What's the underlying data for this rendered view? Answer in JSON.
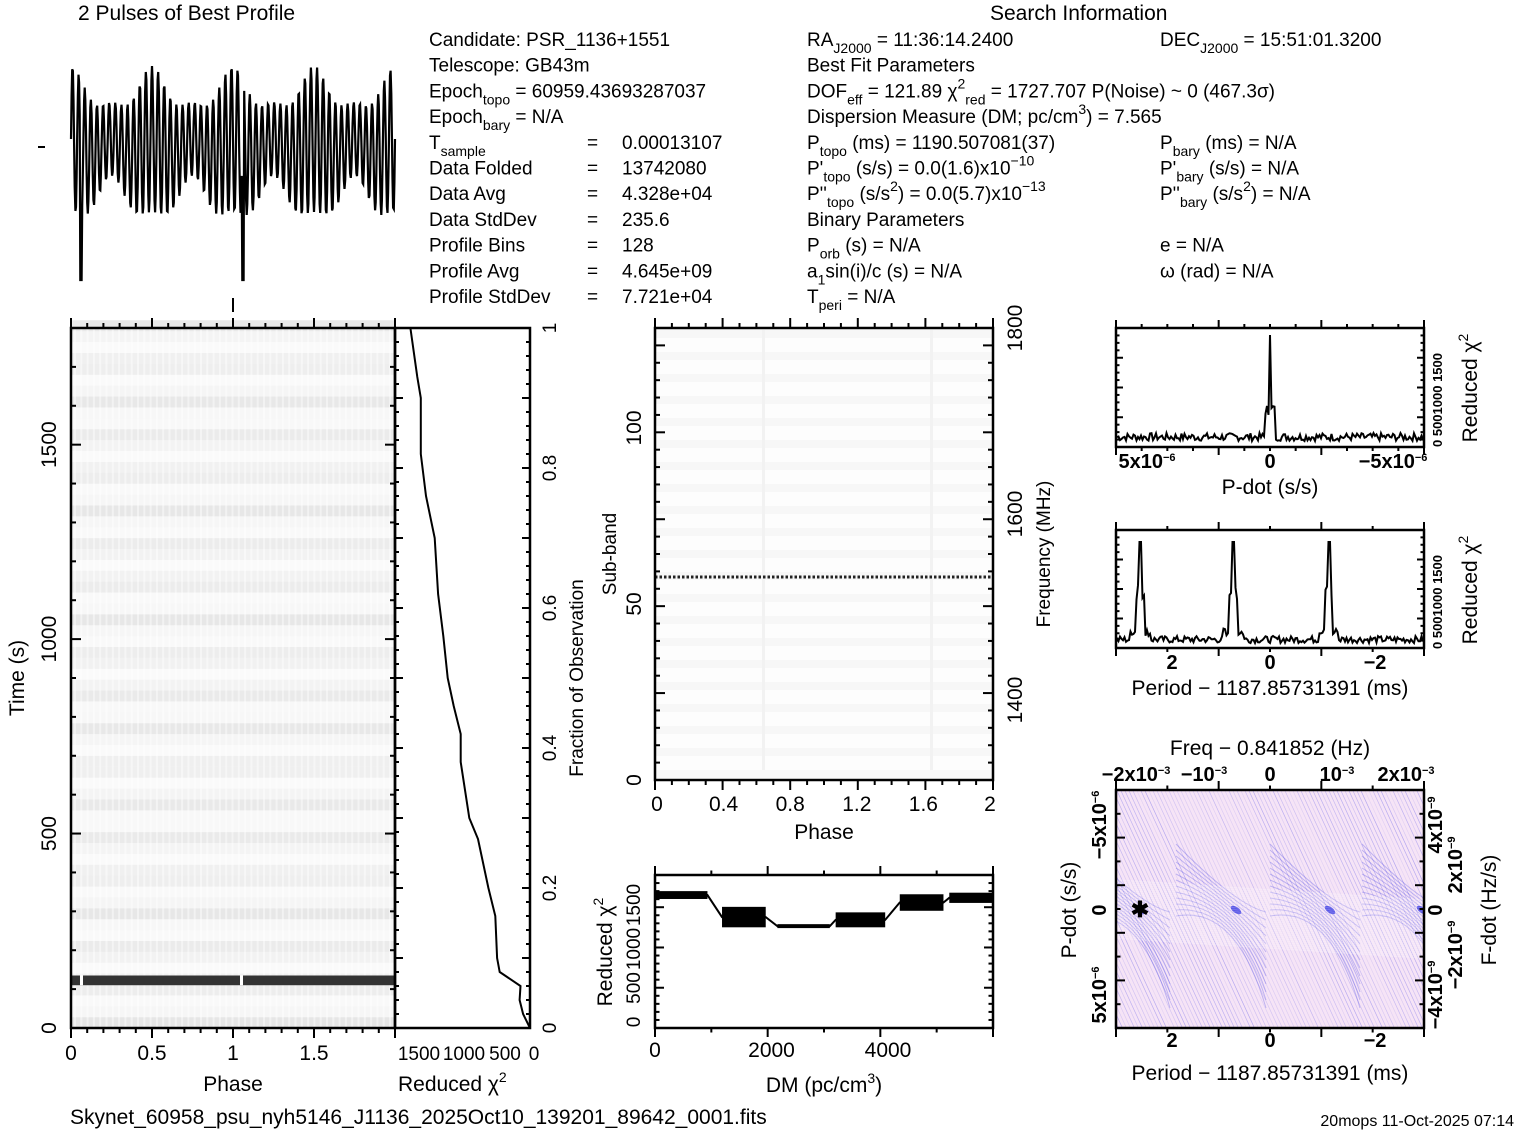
{
  "profile_title": "2 Pulses of Best Profile",
  "search_title": "Search Information",
  "info": {
    "left": [
      [
        {
          "t": "Candidate:  PSR_1136+1551"
        }
      ],
      [
        {
          "t": "Telescope:  GB43m"
        }
      ],
      [
        {
          "t": "Epoch"
        },
        {
          "t": "topo",
          "s": "sub"
        },
        {
          "t": " = 60959.43693287037"
        }
      ],
      [
        {
          "t": "Epoch"
        },
        {
          "t": "bary",
          "s": "sub"
        },
        {
          "t": " = N/A"
        }
      ],
      [
        {
          "t": "T"
        },
        {
          "t": "sample",
          "s": "sub"
        },
        {
          "t": "=",
          "c": 1
        },
        {
          "t": "0.00013107",
          "v": 1
        }
      ],
      [
        {
          "t": "Data Folded"
        },
        {
          "t": "=",
          "c": 1
        },
        {
          "t": "13742080",
          "v": 1
        }
      ],
      [
        {
          "t": "Data Avg"
        },
        {
          "t": "=",
          "c": 1
        },
        {
          "t": "4.328e+04",
          "v": 1
        }
      ],
      [
        {
          "t": "Data StdDev"
        },
        {
          "t": "=",
          "c": 1
        },
        {
          "t": "235.6",
          "v": 1
        }
      ],
      [
        {
          "t": "Profile Bins"
        },
        {
          "t": "=",
          "c": 1
        },
        {
          "t": "128",
          "v": 1
        }
      ],
      [
        {
          "t": "Profile Avg"
        },
        {
          "t": "=",
          "c": 1
        },
        {
          "t": "4.645e+09",
          "v": 1
        }
      ],
      [
        {
          "t": "Profile StdDev"
        },
        {
          "t": "=",
          "c": 1
        },
        {
          "t": "7.721e+04",
          "v": 1
        }
      ]
    ],
    "middle": [
      [
        {
          "t": "RA"
        },
        {
          "t": "J2000",
          "s": "sub"
        },
        {
          "t": " = 11:36:14.2400"
        }
      ],
      [
        {
          "t": "           Best Fit Parameters"
        }
      ],
      [
        {
          "t": "DOF"
        },
        {
          "t": "eff",
          "s": "sub"
        },
        {
          "t": " = 121.89  χ"
        },
        {
          "t": "2",
          "s": "sup"
        },
        {
          "t": "red",
          "s": "sub"
        },
        {
          "t": " = 1727.707  P(Noise) ~ 0   (467.3σ)"
        }
      ],
      [
        {
          "t": "Dispersion Measure (DM; pc/cm"
        },
        {
          "t": "3",
          "s": "sup"
        },
        {
          "t": ") = 7.565"
        }
      ],
      [
        {
          "t": "P"
        },
        {
          "t": "topo",
          "s": "sub"
        },
        {
          "t": " (ms) =  1190.507081(37)"
        }
      ],
      [
        {
          "t": "P'"
        },
        {
          "t": "topo",
          "s": "sub"
        },
        {
          "t": " (s/s) = 0.0(1.6)x10"
        },
        {
          "t": "−10",
          "s": "sup"
        }
      ],
      [
        {
          "t": "P''"
        },
        {
          "t": "topo",
          "s": "sub"
        },
        {
          "t": " (s/s"
        },
        {
          "t": "2",
          "s": "sup"
        },
        {
          "t": ") = 0.0(5.7)x10"
        },
        {
          "t": "−13",
          "s": "sup"
        }
      ],
      [
        {
          "t": "           Binary Parameters"
        }
      ],
      [
        {
          "t": "P"
        },
        {
          "t": "orb",
          "s": "sub"
        },
        {
          "t": " (s) = N/A"
        }
      ],
      [
        {
          "t": "a"
        },
        {
          "t": "1",
          "s": "sub"
        },
        {
          "t": "sin(i)/c (s) = N/A"
        }
      ],
      [
        {
          "t": "T"
        },
        {
          "t": "peri",
          "s": "sub"
        },
        {
          "t": " = N/A"
        }
      ]
    ],
    "right": [
      [
        {
          "t": "DEC"
        },
        {
          "t": "J2000",
          "s": "sub"
        },
        {
          "t": " = 15:51:01.3200"
        }
      ],
      [],
      [],
      [],
      [
        {
          "t": "P"
        },
        {
          "t": "bary",
          "s": "sub"
        },
        {
          "t": " (ms) = N/A"
        }
      ],
      [
        {
          "t": "P'"
        },
        {
          "t": "bary",
          "s": "sub"
        },
        {
          "t": " (s/s) = N/A"
        }
      ],
      [
        {
          "t": "P''"
        },
        {
          "t": "bary",
          "s": "sub"
        },
        {
          "t": " (s/s"
        },
        {
          "t": "2",
          "s": "sup"
        },
        {
          "t": ") = N/A"
        }
      ],
      [],
      [
        {
          "t": "e = N/A"
        }
      ],
      [
        {
          "t": "ω (rad) = N/A"
        }
      ],
      []
    ]
  },
  "footer": {
    "filename": "Skynet_60958_psu_nyh5146_J1136_2025Oct10_139201_89642_0001.fits",
    "stamp": "20mops 11-Oct-2025 07:14"
  },
  "colors": {
    "ink": "#000000",
    "heat_bg": "#f6e4f6",
    "heat_line": "#2020e0",
    "dark_band": "#333333"
  },
  "chart_data": [
    {
      "type": "line",
      "name": "profile",
      "title": "2 Pulses of Best Profile",
      "xlabel": "Phase",
      "xlim": [
        0,
        2
      ]
    },
    {
      "type": "heatmap",
      "name": "time-phase",
      "xlabel": "Phase",
      "ylabel": "Time (s)",
      "xlim": [
        0,
        2
      ],
      "ylim": [
        0,
        1800
      ],
      "xticks": [
        "0",
        "0.5",
        "1",
        "1.5"
      ],
      "yticks": [
        "0",
        "500",
        "1000",
        "1500"
      ],
      "dark_band_time_s": [
        110,
        135
      ]
    },
    {
      "type": "line",
      "name": "chi2-vs-fraction",
      "xlabel": "Reduced χ",
      "xlabel_sup": "2",
      "ylabel": "Fraction of Observation",
      "xticks": [
        "1500",
        "1000",
        "500",
        "0"
      ],
      "yticks": [
        "0",
        "0.2",
        "0.4",
        "0.6",
        "0.8",
        "1"
      ],
      "x": [
        0,
        80,
        120,
        110,
        350,
        380,
        400,
        480,
        600,
        700,
        800,
        800,
        880,
        950,
        1000,
        1060,
        1100,
        1200,
        1260,
        1260,
        1300,
        1380
      ],
      "y": [
        0,
        0.02,
        0.04,
        0.06,
        0.08,
        0.1,
        0.16,
        0.2,
        0.27,
        0.3,
        0.38,
        0.42,
        0.46,
        0.5,
        0.56,
        0.62,
        0.7,
        0.76,
        0.82,
        0.9,
        0.93,
        1.0
      ]
    },
    {
      "type": "heatmap",
      "name": "subband-phase",
      "xlabel": "Phase",
      "ylabel": "Sub-band",
      "y2label": "Frequency (MHz)",
      "xticks": [
        "0",
        "0.4",
        "0.8",
        "1.2",
        "1.6",
        "2"
      ],
      "yticks": [
        "0",
        "50",
        "100"
      ],
      "y2ticks": [
        "1400",
        "1600",
        "1800"
      ],
      "dotted_line_subband": 57.5
    },
    {
      "type": "area",
      "name": "chi2-vs-dm",
      "xlabel": "DM (pc/cm",
      "xlabel_sup": "3",
      "xlabel_end": ")",
      "ylabel": "Reduced χ",
      "ylabel_sup": "2",
      "xticks": [
        "0",
        "2000",
        "4000"
      ],
      "yticks": [
        "0",
        "500",
        "1000",
        "1500"
      ],
      "segments": [
        {
          "dm": [
            0,
            900
          ],
          "min": 1640,
          "max": 1740
        },
        {
          "dm": [
            1150,
            1900
          ],
          "min": 1280,
          "max": 1540
        },
        {
          "dm": [
            2100,
            3000
          ],
          "min": 1270,
          "max": 1320
        },
        {
          "dm": [
            3100,
            3950
          ],
          "min": 1280,
          "max": 1470
        },
        {
          "dm": [
            4200,
            4950
          ],
          "min": 1490,
          "max": 1700
        },
        {
          "dm": [
            5050,
            5800
          ],
          "min": 1590,
          "max": 1720
        }
      ]
    },
    {
      "type": "line",
      "name": "chi2-vs-pdot",
      "xlabel": "P-dot (s/s)",
      "ylabel": "Reduced χ",
      "ylabel_sup": "2",
      "xticks": [
        {
          "b": "5x10",
          "e": "−6"
        },
        {
          "b": "0",
          "e": ""
        },
        {
          "b": "−5x10",
          "e": "−6"
        }
      ],
      "ytick_text": "0  5001000 1500",
      "peak_x": 0,
      "peak_y": 1700
    },
    {
      "type": "line",
      "name": "chi2-vs-period",
      "xlabel": "Period − 1187.85731391 (ms)",
      "ylabel": "Reduced χ",
      "ylabel_sup": "2",
      "xticks": [
        "2",
        "0",
        "−2"
      ],
      "ytick_text": "0  5001000 1500",
      "peaks_ms": [
        2.65,
        0.75,
        -1.2
      ],
      "peak_height": 1650
    },
    {
      "type": "heatmap",
      "name": "pdot-period",
      "title": "Freq − 0.841852 (Hz)",
      "xlabel": "Period − 1187.85731391 (ms)",
      "ylabel": "P-dot (s/s)",
      "y2label": "F-dot (Hz/s)",
      "xticks": [
        "2",
        "0",
        "−2"
      ],
      "x2ticks": [
        {
          "b": "−2x10",
          "e": "−3"
        },
        {
          "b": "−10",
          "e": "−3"
        },
        {
          "b": "0",
          "e": ""
        },
        {
          "b": "10",
          "e": "−3"
        },
        {
          "b": "2x10",
          "e": "−3"
        }
      ],
      "yticks": [
        {
          "b": "5x10",
          "e": "−6"
        },
        {
          "b": "0",
          "e": ""
        },
        {
          "b": "−5x10",
          "e": "−6"
        }
      ],
      "y2ticks": [
        {
          "b": "−4x10",
          "e": "−9"
        },
        {
          "b": "−2x10",
          "e": "−9"
        },
        {
          "b": "0",
          "e": ""
        },
        {
          "b": "2x10",
          "e": "−9"
        },
        {
          "b": "4x10",
          "e": "−9"
        }
      ],
      "best_marker_ms": 2.65
    }
  ]
}
